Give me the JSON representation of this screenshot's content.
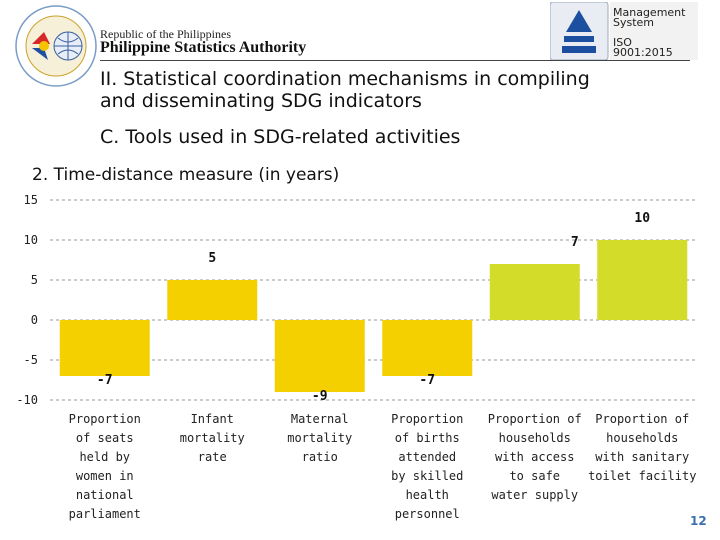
{
  "header": {
    "republic": "Republic of the Philippines",
    "agency": "Philippine Statistics Authority",
    "cert_system": [
      "Management",
      "System"
    ],
    "iso": [
      "ISO",
      "9001:2015"
    ]
  },
  "slide": {
    "title_line1": "II. Statistical coordination mechanisms in compiling",
    "title_line2": "and disseminating SDG indicators",
    "subtitle": "C. Tools used in SDG-related activities",
    "section": "2.  Time-distance measure (in years)",
    "page_number": "12"
  },
  "colors": {
    "negative": "#f5d000",
    "low": "#f5d000",
    "high": "#d4dc2a",
    "grid": "#999999"
  },
  "chart_data": {
    "type": "bar",
    "title": "2.  Time-distance measure (in years)",
    "categories": [
      [
        "Proportion",
        "of seats",
        "held by",
        "women in",
        "national",
        "parliament"
      ],
      [
        "Infant",
        "mortality",
        "rate"
      ],
      [
        "Maternal",
        "mortality",
        "ratio"
      ],
      [
        "Proportion",
        "of births",
        "attended",
        "by skilled",
        "health",
        "personnel"
      ],
      [
        "Proportion of",
        "households",
        "with access",
        "to safe",
        "water supply"
      ],
      [
        "Proportion of",
        "households",
        "with sanitary",
        "toilet facility"
      ]
    ],
    "values": [
      -7,
      5,
      -9,
      -7,
      7,
      10
    ],
    "value_labels": [
      "-7",
      "5",
      "-9",
      "-7",
      "7",
      "10"
    ],
    "ylim": [
      -10,
      15
    ],
    "yticks": [
      15,
      10,
      5,
      0,
      -5,
      -10
    ],
    "grid": true
  }
}
